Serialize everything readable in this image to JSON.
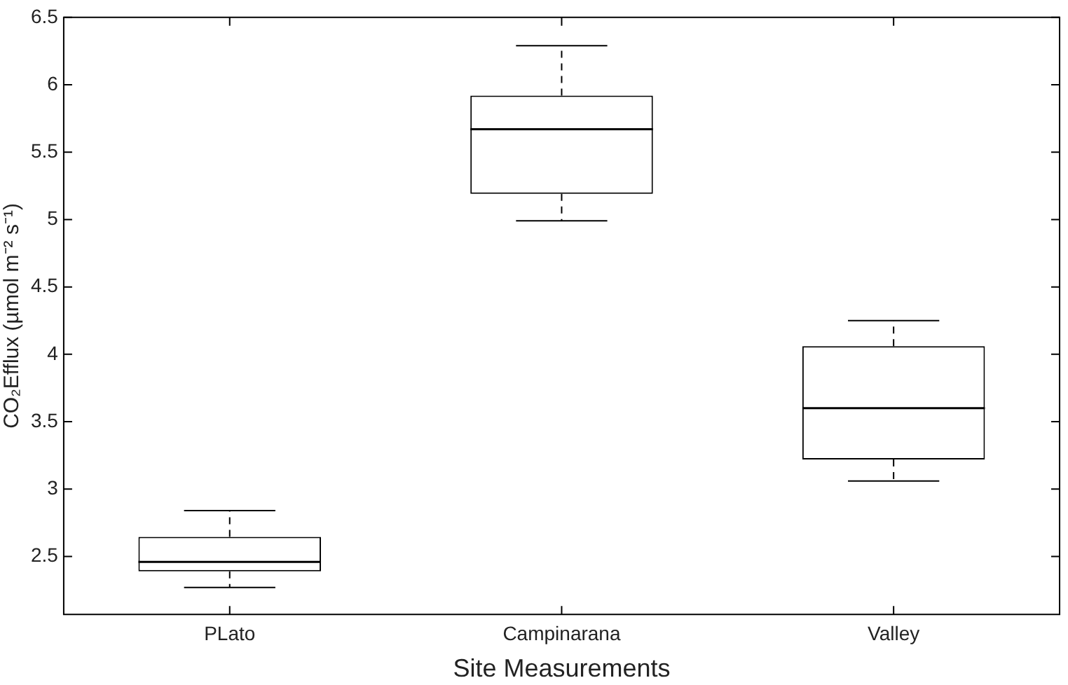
{
  "chart_data": {
    "type": "box",
    "xlabel": "Site Measurements",
    "ylabel": "CO₂Efflux (µmol m⁻² s⁻¹)",
    "categories": [
      "PLato",
      "Campinarana",
      "Valley"
    ],
    "boxes": [
      {
        "low": 2.27,
        "q1": 2.39,
        "median": 2.46,
        "q3": 2.645,
        "high": 2.84
      },
      {
        "low": 4.99,
        "q1": 5.19,
        "median": 5.67,
        "q3": 5.92,
        "high": 6.29
      },
      {
        "low": 3.06,
        "q1": 3.22,
        "median": 3.6,
        "q3": 4.06,
        "high": 4.25
      }
    ],
    "ylim": [
      2.07,
      6.5
    ],
    "yticks": [
      2.5,
      3,
      3.5,
      4,
      4.5,
      5,
      5.5,
      6,
      6.5
    ],
    "grid": false,
    "legend": false
  }
}
